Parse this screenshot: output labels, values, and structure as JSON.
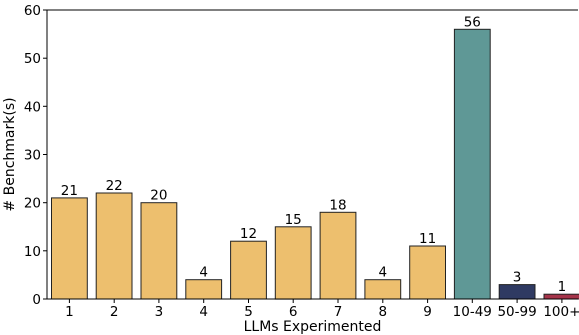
{
  "chart_data": {
    "type": "bar",
    "title": "",
    "xlabel": "LLMs Experimented",
    "ylabel": "# Benchmark(s)",
    "ylim": [
      0,
      60
    ],
    "yticks": [
      0,
      10,
      20,
      30,
      40,
      50,
      60
    ],
    "grid": false,
    "categories": [
      "1",
      "2",
      "3",
      "4",
      "5",
      "6",
      "7",
      "8",
      "9",
      "10-49",
      "50-99",
      "100+"
    ],
    "values": [
      21,
      22,
      20,
      4,
      12,
      15,
      18,
      4,
      11,
      56,
      3,
      1
    ],
    "value_labels": [
      "21",
      "22",
      "20",
      "4",
      "12",
      "15",
      "18",
      "4",
      "11",
      "56",
      "3",
      "1"
    ],
    "colors": [
      "#EDBF6E",
      "#EDBF6E",
      "#EDBF6E",
      "#EDBF6E",
      "#EDBF6E",
      "#EDBF6E",
      "#EDBF6E",
      "#EDBF6E",
      "#EDBF6E",
      "#5F9896",
      "#2F3A62",
      "#A5344A"
    ]
  }
}
